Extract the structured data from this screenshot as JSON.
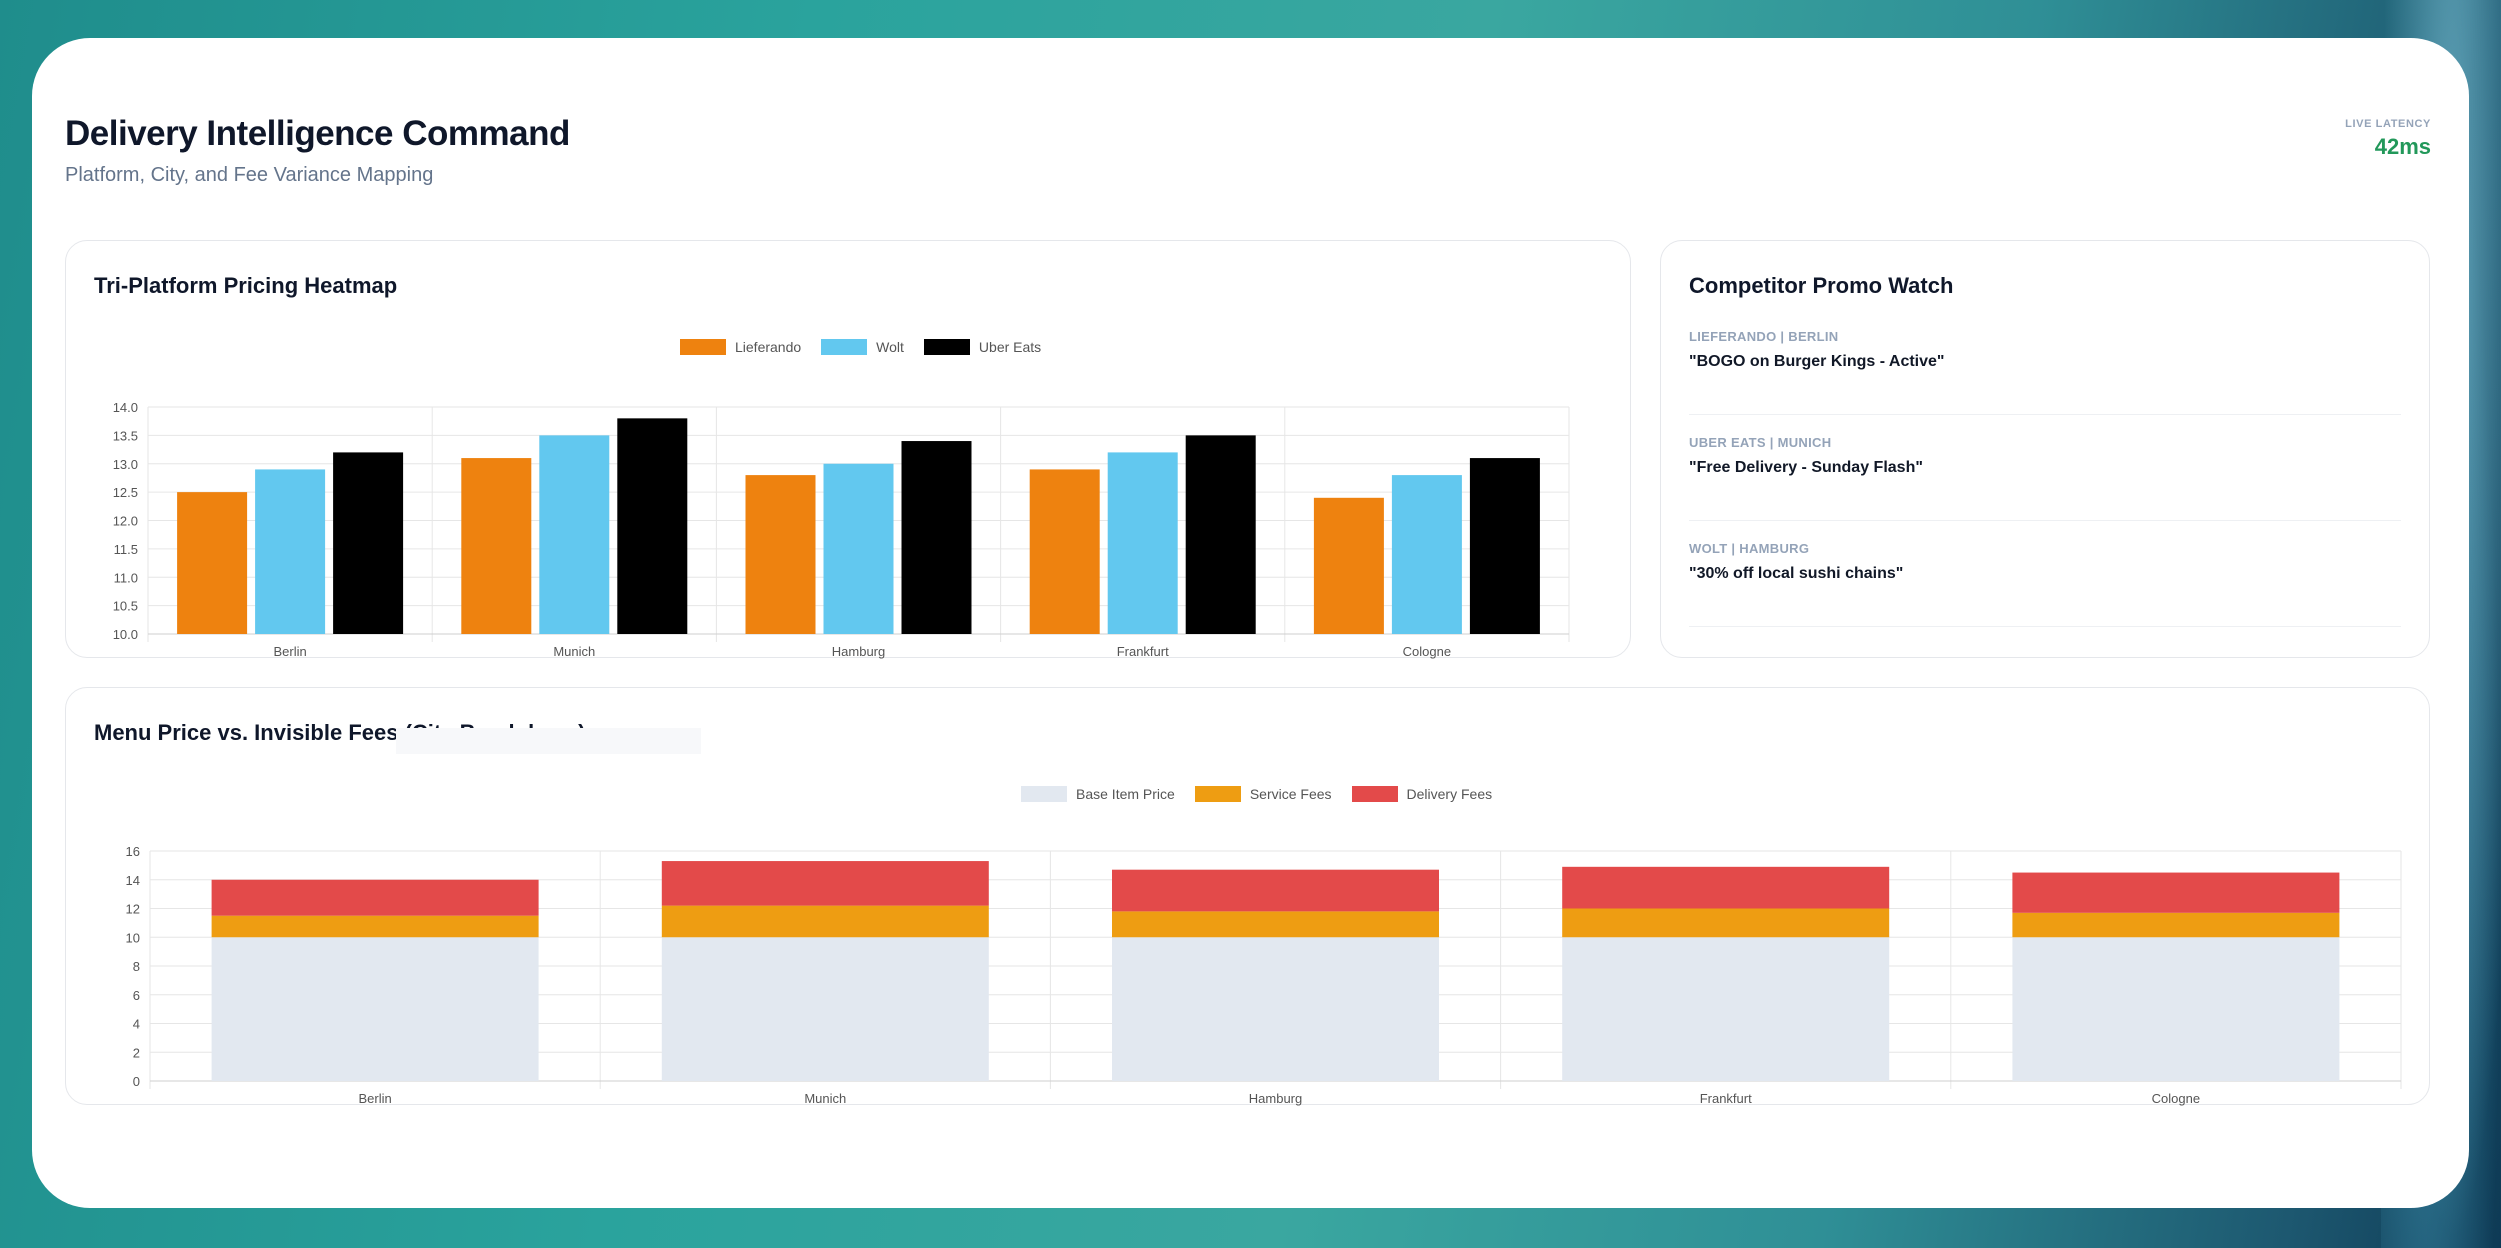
{
  "header": {
    "title": "Delivery Intelligence Command",
    "subtitle": "Platform, City, and Fee Variance Mapping",
    "latency_label": "LIVE LATENCY",
    "latency_value": "42ms"
  },
  "colors": {
    "lieferando": "#ee820f",
    "wolt": "#62c8ef",
    "uber_eats": "#000000",
    "base_item_price": "#e2e8f0",
    "service_fees": "#ee9d12",
    "delivery_fees": "#e34a4a",
    "latency": "#22985a"
  },
  "heatmap_card": {
    "title": "Tri-Platform Pricing Heatmap"
  },
  "promo_card": {
    "title": "Competitor Promo Watch",
    "items": [
      {
        "tag": "LIEFERANDO | BERLIN",
        "text": "\"BOGO on Burger Kings - Active\""
      },
      {
        "tag": "UBER EATS | MUNICH",
        "text": "\"Free Delivery - Sunday Flash\""
      },
      {
        "tag": "WOLT | HAMBURG",
        "text": "\"30% off local sushi chains\""
      }
    ]
  },
  "fees_card": {
    "title": "Menu Price vs. Invisible Fees (City Breakdown)"
  },
  "chart_data": [
    {
      "type": "bar",
      "categories": [
        "Berlin",
        "Munich",
        "Hamburg",
        "Frankfurt",
        "Cologne"
      ],
      "series": [
        {
          "name": "Lieferando",
          "values": [
            12.5,
            13.1,
            12.8,
            12.9,
            12.4
          ]
        },
        {
          "name": "Wolt",
          "values": [
            12.9,
            13.5,
            13.0,
            13.2,
            12.8
          ]
        },
        {
          "name": "Uber Eats",
          "values": [
            13.2,
            13.8,
            13.4,
            13.5,
            13.1
          ]
        }
      ],
      "ylim": [
        10,
        14
      ],
      "yticks": [
        "10.0",
        "10.5",
        "11.0",
        "11.5",
        "12.0",
        "12.5",
        "13.0",
        "13.5",
        "14.0"
      ],
      "legend": "top-center",
      "grid": true
    },
    {
      "type": "bar",
      "stacked": true,
      "categories": [
        "Berlin",
        "Munich",
        "Hamburg",
        "Frankfurt",
        "Cologne"
      ],
      "series": [
        {
          "name": "Base Item Price",
          "values": [
            10,
            10,
            10,
            10,
            10
          ]
        },
        {
          "name": "Service Fees",
          "values": [
            1.5,
            2.2,
            1.8,
            2.0,
            1.7
          ]
        },
        {
          "name": "Delivery Fees",
          "values": [
            2.5,
            3.1,
            2.9,
            2.9,
            2.8
          ]
        }
      ],
      "ylim": [
        0,
        16
      ],
      "yticks": [
        "0",
        "2",
        "4",
        "6",
        "8",
        "10",
        "12",
        "14",
        "16"
      ],
      "legend": "top-center",
      "grid": true
    }
  ]
}
